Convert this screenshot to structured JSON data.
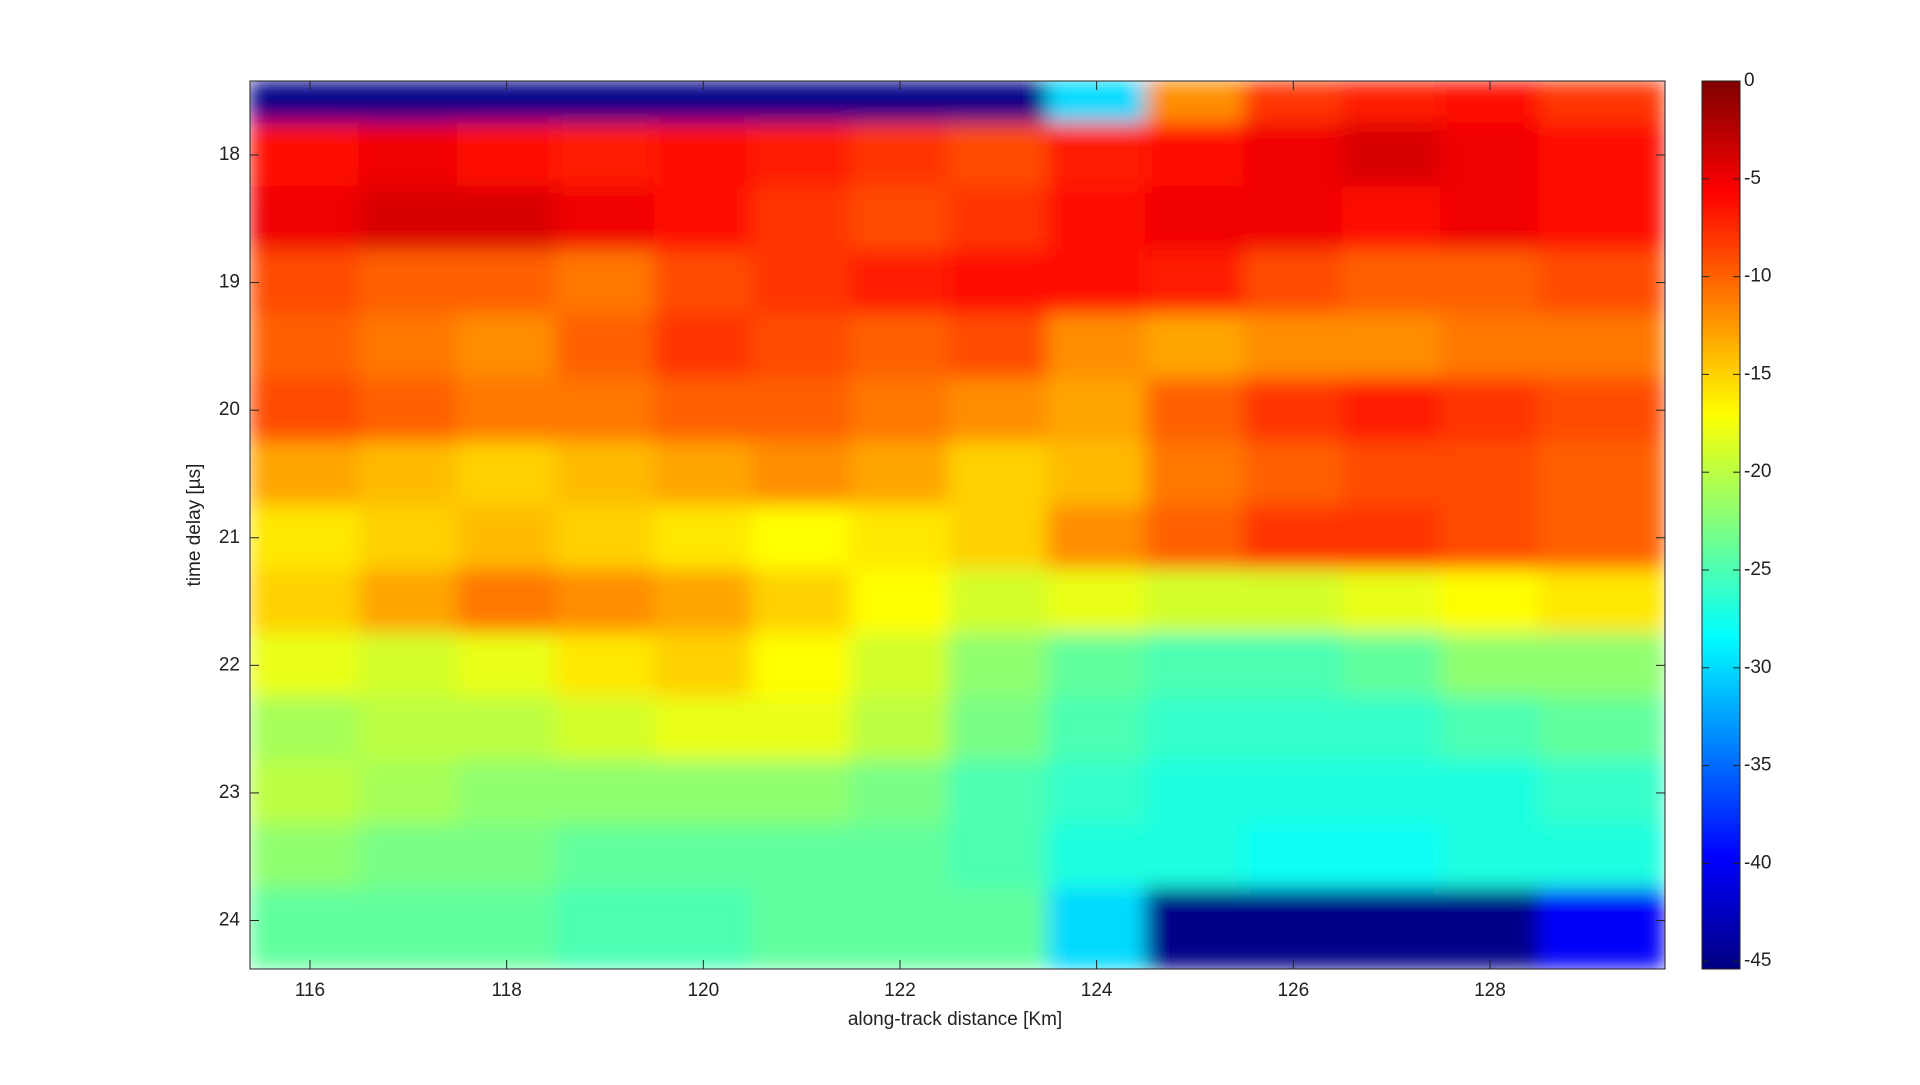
{
  "chart_data": {
    "type": "heatmap",
    "colormap": "jet",
    "xlabel": "along-track distance [Km]",
    "ylabel": "time delay  [µs]",
    "x": [
      116,
      117,
      118,
      119,
      120,
      121,
      122,
      123,
      124,
      125,
      126,
      127,
      128,
      129
    ],
    "y": [
      17.5,
      18,
      18.5,
      19,
      19.5,
      20,
      20.5,
      21,
      21.5,
      22,
      22.5,
      23,
      23.5,
      24
    ],
    "z": [
      [
        -45,
        -45,
        -45,
        -45,
        -45,
        -45,
        -45,
        -45,
        -30,
        -12,
        -8,
        -7,
        -6,
        -8
      ],
      [
        -6,
        -5,
        -6,
        -7,
        -6,
        -7,
        -8,
        -9,
        -7,
        -6,
        -5,
        -4,
        -5,
        -6
      ],
      [
        -5,
        -4,
        -4,
        -5,
        -6,
        -8,
        -9,
        -8,
        -6,
        -5,
        -5,
        -6,
        -5,
        -6
      ],
      [
        -9,
        -10,
        -10,
        -11,
        -9,
        -8,
        -7,
        -6,
        -6,
        -7,
        -9,
        -10,
        -10,
        -9
      ],
      [
        -10,
        -11,
        -12,
        -10,
        -8,
        -9,
        -10,
        -9,
        -12,
        -13,
        -12,
        -12,
        -11,
        -11
      ],
      [
        -9,
        -10,
        -11,
        -11,
        -10,
        -10,
        -11,
        -12,
        -13,
        -10,
        -8,
        -7,
        -8,
        -9
      ],
      [
        -13,
        -14,
        -15,
        -14,
        -13,
        -12,
        -13,
        -15,
        -14,
        -11,
        -10,
        -9,
        -9,
        -10
      ],
      [
        -16,
        -15,
        -14,
        -15,
        -16,
        -17,
        -16,
        -15,
        -12,
        -10,
        -8,
        -8,
        -9,
        -10
      ],
      [
        -15,
        -13,
        -11,
        -12,
        -13,
        -15,
        -17,
        -19,
        -18,
        -19,
        -19,
        -18,
        -17,
        -16
      ],
      [
        -18,
        -19,
        -18,
        -16,
        -15,
        -17,
        -19,
        -22,
        -24,
        -25,
        -25,
        -24,
        -22,
        -22
      ],
      [
        -21,
        -20,
        -20,
        -19,
        -18,
        -18,
        -20,
        -23,
        -25,
        -26,
        -26,
        -26,
        -25,
        -24
      ],
      [
        -20,
        -21,
        -22,
        -22,
        -22,
        -22,
        -23,
        -25,
        -26,
        -27,
        -27,
        -27,
        -27,
        -26
      ],
      [
        -22,
        -23,
        -23,
        -24,
        -24,
        -24,
        -24,
        -25,
        -27,
        -27,
        -28,
        -28,
        -27,
        -27
      ],
      [
        -24,
        -24,
        -24,
        -25,
        -25,
        -24,
        -24,
        -24,
        -30,
        -45,
        -45,
        -45,
        -45,
        -40
      ]
    ],
    "xlim": [
      115.39,
      129.78
    ],
    "ylim": [
      17.42,
      24.38
    ],
    "y_inverted": true,
    "xticks": [
      116,
      118,
      120,
      122,
      124,
      126,
      128
    ],
    "yticks": [
      18,
      19,
      20,
      21,
      22,
      23,
      24
    ],
    "clim": [
      -45.4,
      0
    ],
    "cticks": [
      0,
      -5,
      -10,
      -15,
      -20,
      -25,
      -30,
      -35,
      -40,
      -45
    ]
  }
}
